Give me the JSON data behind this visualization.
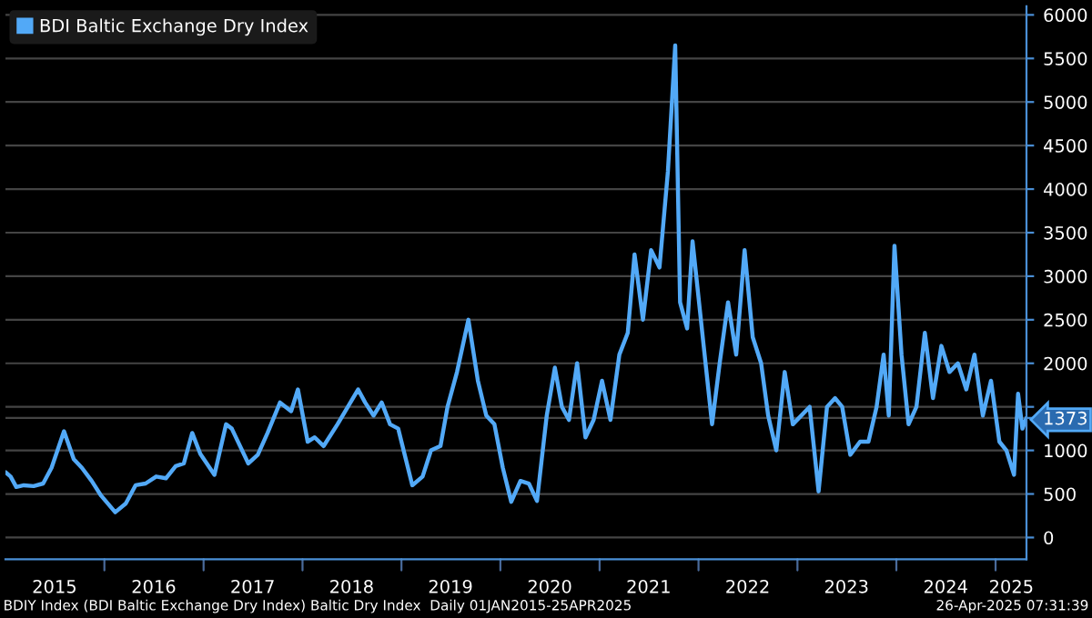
{
  "chart_data": {
    "type": "line",
    "x": [
      "2015-01-01",
      "2015-01-20",
      "2015-02-10",
      "2015-03-10",
      "2015-04-15",
      "2015-05-20",
      "2015-06-20",
      "2015-08-05",
      "2015-09-10",
      "2015-10-10",
      "2015-11-15",
      "2015-12-20",
      "2016-02-10",
      "2016-03-20",
      "2016-04-25",
      "2016-06-01",
      "2016-07-10",
      "2016-08-15",
      "2016-09-20",
      "2016-10-20",
      "2016-11-20",
      "2016-12-20",
      "2017-02-10",
      "2017-03-25",
      "2017-04-15",
      "2017-06-15",
      "2017-07-20",
      "2017-08-25",
      "2017-10-10",
      "2017-11-20",
      "2017-12-15",
      "2018-01-20",
      "2018-02-15",
      "2018-03-20",
      "2018-05-10",
      "2018-07-25",
      "2018-08-20",
      "2018-09-20",
      "2018-10-20",
      "2018-11-20",
      "2018-12-20",
      "2019-02-10",
      "2019-03-20",
      "2019-04-20",
      "2019-05-25",
      "2019-06-20",
      "2019-07-25",
      "2019-09-05",
      "2019-10-10",
      "2019-11-10",
      "2019-12-10",
      "2020-01-10",
      "2020-02-10",
      "2020-03-15",
      "2020-04-15",
      "2020-05-15",
      "2020-06-20",
      "2020-07-20",
      "2020-08-15",
      "2020-09-10",
      "2020-10-10",
      "2020-11-10",
      "2020-12-10",
      "2021-01-10",
      "2021-02-10",
      "2021-03-15",
      "2021-04-15",
      "2021-05-10",
      "2021-06-10",
      "2021-07-10",
      "2021-08-10",
      "2021-09-10",
      "2021-10-07",
      "2021-10-25",
      "2021-11-20",
      "2021-12-10",
      "2022-01-20",
      "2022-02-20",
      "2022-03-20",
      "2022-04-20",
      "2022-05-20",
      "2022-06-20",
      "2022-07-20",
      "2022-08-20",
      "2022-09-15",
      "2022-10-15",
      "2022-11-15",
      "2022-12-15",
      "2023-02-15",
      "2023-03-20",
      "2023-04-20",
      "2023-05-20",
      "2023-06-15",
      "2023-07-15",
      "2023-08-20",
      "2023-09-20",
      "2023-10-20",
      "2023-11-15",
      "2023-12-04",
      "2023-12-25",
      "2024-01-20",
      "2024-02-15",
      "2024-03-15",
      "2024-04-15",
      "2024-05-15",
      "2024-06-15",
      "2024-07-15",
      "2024-08-15",
      "2024-09-15",
      "2024-10-15",
      "2024-11-15",
      "2024-12-15",
      "2025-01-15",
      "2025-02-10",
      "2025-03-10",
      "2025-03-25",
      "2025-04-10",
      "2025-04-25"
    ],
    "series": [
      {
        "name": "BDI Baltic Exchange Dry Index",
        "color": "#52a9f7",
        "values": [
          750,
          700,
          580,
          600,
          590,
          620,
          800,
          1220,
          900,
          800,
          650,
          480,
          290,
          390,
          600,
          620,
          700,
          680,
          820,
          850,
          1200,
          960,
          720,
          1300,
          1250,
          850,
          950,
          1200,
          1550,
          1450,
          1700,
          1100,
          1150,
          1050,
          1300,
          1700,
          1550,
          1400,
          1550,
          1300,
          1250,
          600,
          700,
          1000,
          1050,
          1500,
          1900,
          2500,
          1800,
          1400,
          1300,
          800,
          410,
          650,
          620,
          420,
          1400,
          1950,
          1500,
          1350,
          2000,
          1150,
          1350,
          1800,
          1350,
          2100,
          2350,
          3250,
          2500,
          3300,
          3100,
          4200,
          5650,
          2700,
          2400,
          3400,
          2200,
          1300,
          2000,
          2700,
          2100,
          3300,
          2300,
          2000,
          1400,
          1000,
          1900,
          1300,
          1500,
          530,
          1500,
          1600,
          1500,
          950,
          1100,
          1100,
          1500,
          2100,
          1400,
          3350,
          2100,
          1300,
          1500,
          2350,
          1600,
          2200,
          1900,
          2000,
          1700,
          2100,
          1400,
          1800,
          1100,
          1000,
          720,
          1650,
          1250,
          1373
        ]
      }
    ],
    "ylim": [
      -250,
      6100
    ],
    "yticks": [
      0,
      500,
      1000,
      {
        "value": 1373,
        "label": "1373"
      },
      {
        "value": 1500,
        "label": null
      },
      2000,
      2500,
      3000,
      3500,
      4000,
      4500,
      5000,
      5500,
      6000
    ],
    "xlim": [
      "2015-01-01",
      "2025-04-25"
    ],
    "xticks": [
      {
        "value": "2015-07-01",
        "label": "2015"
      },
      {
        "value": "2016-07-01",
        "label": "2016"
      },
      {
        "value": "2017-07-01",
        "label": "2017"
      },
      {
        "value": "2018-07-01",
        "label": "2018"
      },
      {
        "value": "2019-07-01",
        "label": "2019"
      },
      {
        "value": "2020-07-01",
        "label": "2020"
      },
      {
        "value": "2021-07-01",
        "label": "2021"
      },
      {
        "value": "2022-07-01",
        "label": "2022"
      },
      {
        "value": "2023-07-01",
        "label": "2023"
      },
      {
        "value": "2024-07-01",
        "label": "2024"
      },
      {
        "value": "2025-02-28",
        "label": "2025"
      }
    ],
    "grid": "y",
    "legend": "top left",
    "annotations": [
      "BDIY Index (BDI Baltic Exchange Dry Index) Baltic Dry Index  Daily 01JAN2015-25APR2025",
      "26-Apr-2025 07:31:39"
    ]
  }
}
